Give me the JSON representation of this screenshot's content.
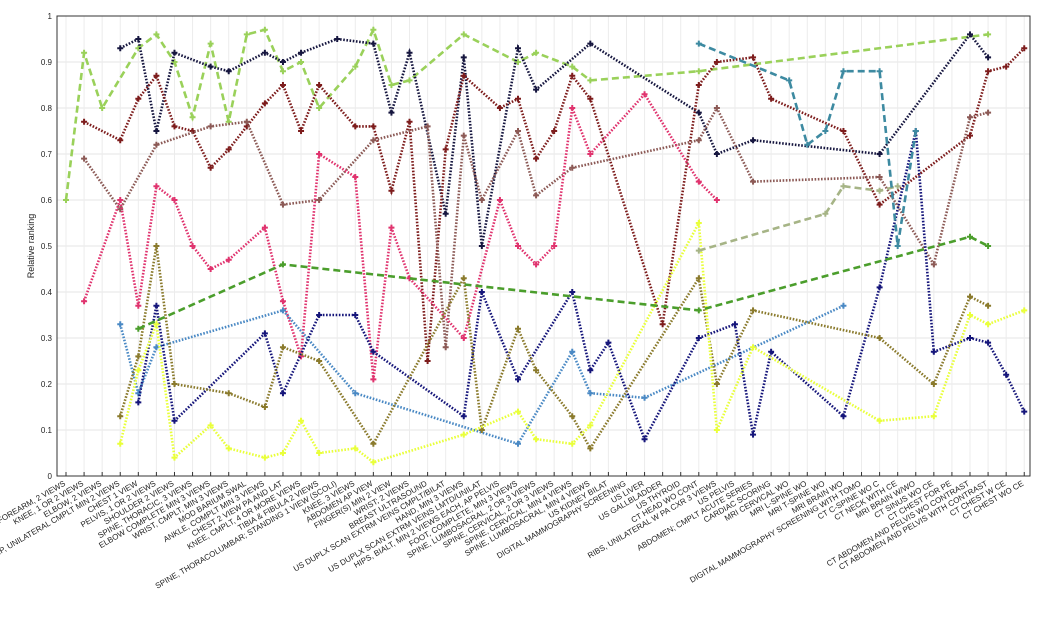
{
  "chart_data": {
    "type": "line",
    "title": "",
    "xlabel": "",
    "ylabel": "Relative ranking",
    "ylim": [
      0,
      1
    ],
    "yticks": [
      "0",
      "0.1",
      "0.2",
      "0.3",
      "0.4",
      "0.5",
      "0.6",
      "0.7",
      "0.8",
      "0.9",
      "1"
    ],
    "grid": true,
    "legend": "none",
    "categories": [
      "FOREARM, 2 VIEWS",
      "KNEE, 1 OR 2 VIEWS",
      "ELBOW, 2 VIEWS",
      "HIP, UNILATERAL CMPLT MIN 2 VIEWS",
      "CHEST 1 VIEW",
      "PELVIS, 1 OR 2 VIEWS",
      "SHOULDER 2 VIEWS",
      "SPINE, THORACIC, 3 VIEWS",
      "ELBOW COMPLETE MIN 3 VIEWS",
      "WRIST, CMPLT, MIN 3 VIEWS",
      "MOD BARIUM SWAL",
      "ANKLE, COMPLT MIN 3 VIEWS",
      "CHEST 2 VIEW PA AND LAT",
      "KNEE, CMPLT, 4 OR MORE VIEWS",
      "TIBIA & FIBULA 2 VIEWS",
      "SPINE, THORACOLUMBAR; STANDING 1 VIEW (SCOLI)",
      "KNEE, 3 VIEWS",
      "ABDOMEN AP VIEW",
      "FINGER(S) MIN 2 VIEW",
      "WRIST; 2 VIEWS",
      "BREAST ULTRASOUND",
      "US DUPLX SCAN EXTRM VEINS CMPLT/BILAT",
      "HAND, MIN 3 VIEWS",
      "US DUPLX SCAN EXTRM VEINS LMTD/UNILAT",
      "HIPS, BIALT, MIN 2 VIEWS EACH, AP PELVIS",
      "FOOT, COMPLETE, MIN 3 VIEWS",
      "SPINE, LUMBOSACRAL, 2 OR 3 VIEWS",
      "SPINE, CERVICAL, 2 OR 3 VIEWS",
      "SPINE, CERVICAL, MIN 4 VIEWS",
      "SPINE, LUMBOSACRAL, MIN 4 VIEWS",
      "US KIDNEY BILAT",
      "DIGITAL MAMMOGRAPHY SCREENING",
      "US LIVER",
      "US GALLBLADDER",
      "US THYROID",
      "CT HEAD WO CONT",
      "RIBS, UNILATERAL W PA CXR 3 VIEWS",
      "US PELVIS",
      "ABDOMEN; CMPLT ACUTE SERIES",
      "CARDIAC SCORING",
      "MRI CERVICAL WO",
      "MRI L-SPINE WO",
      "MRI T-SPINE WO",
      "MRI BRAIN WO",
      "DIGITAL MAMMOGRAPHY SCREENING WITH TOMO",
      "CT C-SPINE WO C",
      "CT NECK WITH CE",
      "MRI BRAIN W/WO",
      "CT SINUS WO CE",
      "CT CHEST FOR PE",
      "CT ABDOMEN AND PELVIS WO CONTRAST",
      "CT ABDOMEN AND PELVIS WITH CONTRAST",
      "CT CHEST W CE",
      "CT CHEST WO CE"
    ],
    "series": [
      {
        "color": "#9ad15a",
        "style": "dashed",
        "points": [
          [
            0,
            0.6
          ],
          [
            1,
            0.92
          ],
          [
            2,
            0.8
          ],
          [
            4,
            0.93
          ],
          [
            5,
            0.96
          ],
          [
            6,
            0.9
          ],
          [
            7,
            0.78
          ],
          [
            8,
            0.94
          ],
          [
            9,
            0.77
          ],
          [
            10,
            0.96
          ],
          [
            11,
            0.97
          ],
          [
            12,
            0.88
          ],
          [
            13,
            0.9
          ],
          [
            14,
            0.8
          ],
          [
            16,
            0.89
          ],
          [
            17,
            0.97
          ],
          [
            18,
            0.85
          ],
          [
            19,
            0.86
          ],
          [
            22,
            0.96
          ],
          [
            25,
            0.9
          ],
          [
            26,
            0.92
          ],
          [
            28,
            0.89
          ],
          [
            29,
            0.86
          ],
          [
            35,
            0.88
          ],
          [
            51,
            0.96
          ]
        ]
      },
      {
        "color": "#16163f",
        "style": "dotted",
        "points": [
          [
            3,
            0.93
          ],
          [
            4,
            0.95
          ],
          [
            5,
            0.75
          ],
          [
            6,
            0.92
          ],
          [
            8,
            0.89
          ],
          [
            9,
            0.88
          ],
          [
            11,
            0.92
          ],
          [
            12,
            0.9
          ],
          [
            13,
            0.92
          ],
          [
            15,
            0.95
          ],
          [
            17,
            0.94
          ],
          [
            18,
            0.79
          ],
          [
            19,
            0.92
          ],
          [
            21,
            0.57
          ],
          [
            22,
            0.91
          ],
          [
            23,
            0.5
          ],
          [
            25,
            0.93
          ],
          [
            26,
            0.84
          ],
          [
            29,
            0.94
          ],
          [
            35,
            0.79
          ],
          [
            36,
            0.7
          ],
          [
            38,
            0.73
          ],
          [
            45,
            0.7
          ],
          [
            50,
            0.96
          ],
          [
            51,
            0.91
          ]
        ]
      },
      {
        "color": "#7d1c1c",
        "style": "dotted",
        "points": [
          [
            1,
            0.77
          ],
          [
            3,
            0.73
          ],
          [
            4,
            0.82
          ],
          [
            5,
            0.87
          ],
          [
            6,
            0.76
          ],
          [
            7,
            0.75
          ],
          [
            8,
            0.67
          ],
          [
            9,
            0.71
          ],
          [
            10,
            0.76
          ],
          [
            11,
            0.81
          ],
          [
            12,
            0.85
          ],
          [
            13,
            0.75
          ],
          [
            14,
            0.85
          ],
          [
            16,
            0.76
          ],
          [
            17,
            0.76
          ],
          [
            18,
            0.62
          ],
          [
            19,
            0.77
          ],
          [
            20,
            0.25
          ],
          [
            21,
            0.71
          ],
          [
            22,
            0.87
          ],
          [
            24,
            0.8
          ],
          [
            25,
            0.82
          ],
          [
            26,
            0.69
          ],
          [
            27,
            0.75
          ],
          [
            28,
            0.87
          ],
          [
            29,
            0.82
          ],
          [
            33,
            0.33
          ],
          [
            35,
            0.85
          ],
          [
            36,
            0.9
          ],
          [
            38,
            0.91
          ],
          [
            39,
            0.82
          ],
          [
            43,
            0.75
          ],
          [
            45,
            0.59
          ],
          [
            50,
            0.74
          ],
          [
            51,
            0.88
          ],
          [
            52,
            0.89
          ],
          [
            53,
            0.93
          ]
        ]
      },
      {
        "color": "#8c5a56",
        "style": "dotted",
        "points": [
          [
            1,
            0.69
          ],
          [
            3,
            0.58
          ],
          [
            5,
            0.72
          ],
          [
            8,
            0.76
          ],
          [
            10,
            0.77
          ],
          [
            12,
            0.59
          ],
          [
            14,
            0.6
          ],
          [
            17,
            0.73
          ],
          [
            20,
            0.76
          ],
          [
            21,
            0.28
          ],
          [
            22,
            0.74
          ],
          [
            23,
            0.6
          ],
          [
            25,
            0.75
          ],
          [
            26,
            0.61
          ],
          [
            28,
            0.67
          ],
          [
            35,
            0.73
          ],
          [
            36,
            0.8
          ],
          [
            38,
            0.64
          ],
          [
            45,
            0.65
          ],
          [
            48,
            0.46
          ],
          [
            50,
            0.78
          ],
          [
            51,
            0.79
          ]
        ]
      },
      {
        "color": "#e0336e",
        "style": "dotted",
        "points": [
          [
            1,
            0.38
          ],
          [
            3,
            0.6
          ],
          [
            4,
            0.37
          ],
          [
            5,
            0.63
          ],
          [
            6,
            0.6
          ],
          [
            7,
            0.5
          ],
          [
            8,
            0.45
          ],
          [
            9,
            0.47
          ],
          [
            11,
            0.54
          ],
          [
            12,
            0.38
          ],
          [
            13,
            0.26
          ],
          [
            14,
            0.7
          ],
          [
            16,
            0.65
          ],
          [
            17,
            0.21
          ],
          [
            18,
            0.54
          ],
          [
            19,
            0.43
          ],
          [
            22,
            0.3
          ],
          [
            24,
            0.6
          ],
          [
            25,
            0.5
          ],
          [
            26,
            0.46
          ],
          [
            27,
            0.5
          ],
          [
            28,
            0.8
          ],
          [
            29,
            0.7
          ],
          [
            32,
            0.83
          ],
          [
            35,
            0.64
          ],
          [
            36,
            0.6
          ]
        ]
      },
      {
        "color": "#4a89c4",
        "style": "dotted",
        "points": [
          [
            3,
            0.33
          ],
          [
            4,
            0.18
          ],
          [
            5,
            0.28
          ],
          [
            12,
            0.36
          ],
          [
            16,
            0.18
          ],
          [
            25,
            0.07
          ],
          [
            28,
            0.27
          ],
          [
            29,
            0.18
          ],
          [
            32,
            0.17
          ],
          [
            43,
            0.37
          ]
        ]
      },
      {
        "color": "#15157a",
        "style": "dotted",
        "points": [
          [
            4,
            0.16
          ],
          [
            5,
            0.37
          ],
          [
            6,
            0.12
          ],
          [
            11,
            0.31
          ],
          [
            12,
            0.18
          ],
          [
            14,
            0.35
          ],
          [
            16,
            0.35
          ],
          [
            17,
            0.27
          ],
          [
            22,
            0.13
          ],
          [
            23,
            0.4
          ],
          [
            25,
            0.21
          ],
          [
            28,
            0.4
          ],
          [
            29,
            0.23
          ],
          [
            30,
            0.29
          ],
          [
            32,
            0.08
          ],
          [
            35,
            0.3
          ],
          [
            37,
            0.33
          ],
          [
            38,
            0.09
          ],
          [
            39,
            0.27
          ],
          [
            43,
            0.13
          ],
          [
            45,
            0.41
          ],
          [
            47,
            0.75
          ],
          [
            48,
            0.27
          ],
          [
            50,
            0.3
          ],
          [
            51,
            0.29
          ],
          [
            52,
            0.22
          ],
          [
            53,
            0.14
          ]
        ]
      },
      {
        "color": "#8a7a2c",
        "style": "dotted",
        "points": [
          [
            3,
            0.13
          ],
          [
            4,
            0.26
          ],
          [
            5,
            0.5
          ],
          [
            6,
            0.2
          ],
          [
            9,
            0.18
          ],
          [
            11,
            0.15
          ],
          [
            12,
            0.28
          ],
          [
            14,
            0.25
          ],
          [
            17,
            0.07
          ],
          [
            22,
            0.43
          ],
          [
            23,
            0.1
          ],
          [
            25,
            0.32
          ],
          [
            26,
            0.23
          ],
          [
            28,
            0.13
          ],
          [
            29,
            0.06
          ],
          [
            35,
            0.43
          ],
          [
            36,
            0.2
          ],
          [
            38,
            0.36
          ],
          [
            45,
            0.3
          ],
          [
            48,
            0.2
          ],
          [
            50,
            0.39
          ],
          [
            51,
            0.37
          ]
        ]
      },
      {
        "color": "#e9ff3a",
        "style": "dotted",
        "points": [
          [
            3,
            0.07
          ],
          [
            4,
            0.23
          ],
          [
            5,
            0.33
          ],
          [
            6,
            0.04
          ],
          [
            8,
            0.11
          ],
          [
            9,
            0.06
          ],
          [
            11,
            0.04
          ],
          [
            12,
            0.05
          ],
          [
            13,
            0.12
          ],
          [
            14,
            0.05
          ],
          [
            16,
            0.06
          ],
          [
            17,
            0.03
          ],
          [
            22,
            0.09
          ],
          [
            25,
            0.14
          ],
          [
            26,
            0.08
          ],
          [
            28,
            0.07
          ],
          [
            29,
            0.11
          ],
          [
            35,
            0.55
          ],
          [
            36,
            0.1
          ],
          [
            38,
            0.28
          ],
          [
            45,
            0.12
          ],
          [
            48,
            0.13
          ],
          [
            50,
            0.35
          ],
          [
            51,
            0.33
          ],
          [
            53,
            0.36
          ]
        ]
      },
      {
        "color": "#4b9e2c",
        "style": "dashed",
        "points": [
          [
            4,
            0.32
          ],
          [
            12,
            0.46
          ],
          [
            35,
            0.36
          ],
          [
            50,
            0.52
          ],
          [
            51,
            0.5
          ]
        ]
      },
      {
        "color": "#a6b486",
        "style": "dashed",
        "points": [
          [
            35,
            0.49
          ],
          [
            42,
            0.57
          ],
          [
            43,
            0.63
          ],
          [
            45,
            0.62
          ],
          [
            46,
            0.63
          ]
        ]
      },
      {
        "color": "#3d8aa1",
        "style": "dashed",
        "points": [
          [
            35,
            0.94
          ],
          [
            40,
            0.86
          ],
          [
            41,
            0.72
          ],
          [
            42,
            0.75
          ],
          [
            43,
            0.88
          ],
          [
            45,
            0.88
          ],
          [
            46,
            0.5
          ],
          [
            47,
            0.75
          ]
        ]
      }
    ]
  }
}
